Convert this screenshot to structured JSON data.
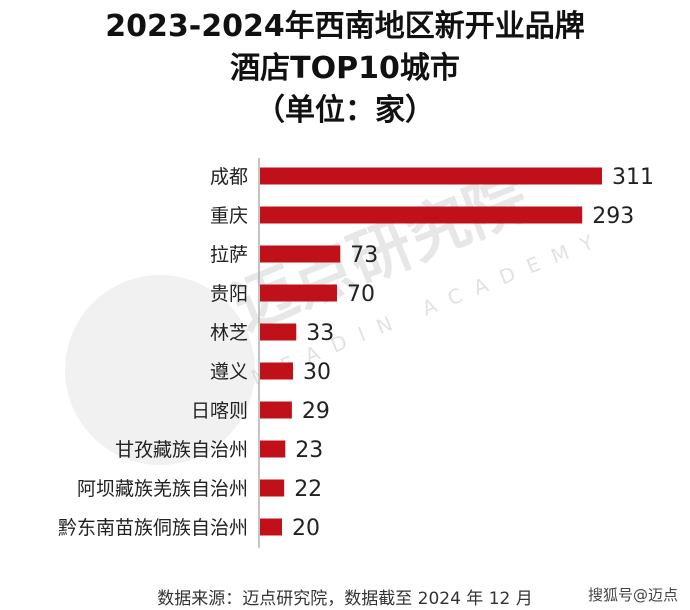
{
  "title": {
    "line1": "2023-2024年西南地区新开业品牌",
    "line2": "酒店TOP10城市",
    "line3": "（单位：家）"
  },
  "chart_data": {
    "type": "bar",
    "orientation": "horizontal",
    "categories": [
      "成都",
      "重庆",
      "拉萨",
      "贵阳",
      "林芝",
      "遵义",
      "日喀则",
      "甘孜藏族自治州",
      "阿坝藏族羌族自治州",
      "黔东南苗族侗族自治州"
    ],
    "values": [
      311,
      293,
      73,
      70,
      33,
      30,
      29,
      23,
      22,
      20
    ],
    "xlim": [
      0,
      311
    ],
    "bar_color": "#c0101a",
    "grid": false
  },
  "watermark": {
    "text_cn": "迈点研究院",
    "text_en": "MEADIN ACADEMY"
  },
  "source": "数据来源：迈点研究院，数据截至 2024 年 12 月",
  "credit": "搜狐号@迈点"
}
